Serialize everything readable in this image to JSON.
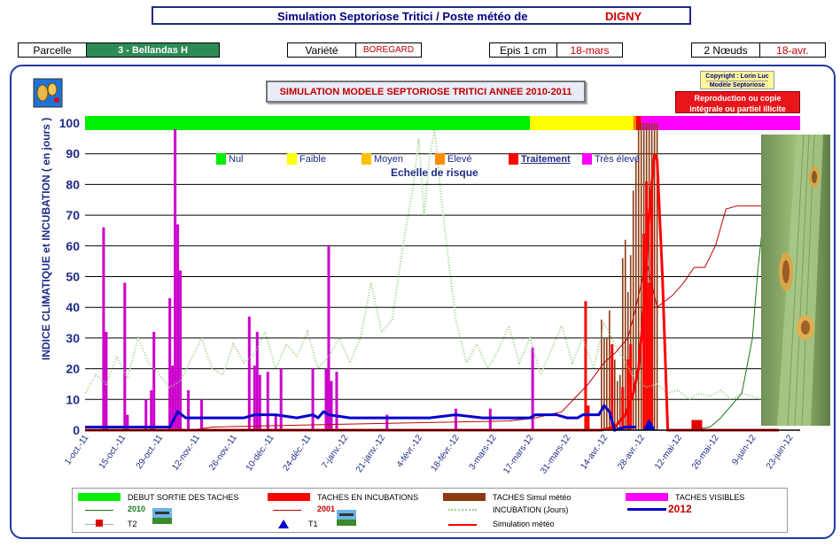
{
  "header": {
    "title_prefix": "Simulation Septoriose Tritici / Poste météo de",
    "station": "DIGNY"
  },
  "info_bar": {
    "parcelle_label": "Parcelle",
    "parcelle_value": "3 - Bellandas H",
    "variete_label": "Variété",
    "variete_value": "BOREGARD",
    "epis_label": "Epis 1 cm",
    "epis_value": "18-mars",
    "noeuds_label": "2 Nœuds",
    "noeuds_value": "18-avr."
  },
  "chart_title": "SIMULATION MODELE SEPTORIOSE TRITICI ANNEE 2010-2011",
  "copyright": {
    "line1": "Copyright : Lorin Luc",
    "line2": "Modèle Septoriose"
  },
  "reproduction": {
    "line1": "Reproduction ou copie",
    "line2": "intégrale ou partiel illicite"
  },
  "colors": {
    "nul": "#00ee00",
    "faible": "#ffff00",
    "moyen": "#ffc000",
    "eleve": "#ff8c00",
    "traitement": "#ff0000",
    "tres_eleve": "#ff00ff",
    "axis_text": "#1f2b86"
  },
  "chart_data": {
    "type": "line",
    "ylabel": "INDICE CLIMATIQUE  et  INCUBATION  ( en jours )",
    "ylim": [
      0,
      100
    ],
    "yticks": [
      0,
      10,
      20,
      30,
      40,
      50,
      60,
      70,
      80,
      90,
      100
    ],
    "xticks": [
      "1-oct.-11",
      "15-oct.-11",
      "29-oct.-11",
      "12-nov.-11",
      "26-nov.-11",
      "10-déc.-11",
      "24-déc.-11",
      "7-janv.-12",
      "21-janv.-12",
      "4-févr.-12",
      "18-févr.-12",
      "3-mars-12",
      "17-mars-12",
      "31-mars-12",
      "14-avr.-12",
      "28-avr.-12",
      "12-mai-12",
      "26-mai-12",
      "9-juin-12",
      "23-juin-12"
    ],
    "risk_scale": {
      "title": "Echelle de risque",
      "items": [
        {
          "label": "Nul",
          "color": "#00ee00"
        },
        {
          "label": "Faible",
          "color": "#ffff00"
        },
        {
          "label": "Moyen",
          "color": "#ffc000"
        },
        {
          "label": "Elevé",
          "color": "#ff8c00"
        },
        {
          "label": "Traitement",
          "color": "#ff0000"
        },
        {
          "label": "Très élevé",
          "color": "#ff00ff"
        }
      ],
      "bands": [
        {
          "from_day": 0,
          "to_day": 168,
          "color": "#00ee00"
        },
        {
          "from_day": 168,
          "to_day": 207,
          "color": "#ffff00"
        },
        {
          "from_day": 207,
          "to_day": 208,
          "color": "#ff8c00"
        },
        {
          "from_day": 208,
          "to_day": 210,
          "color": "#ff0000"
        },
        {
          "from_day": 210,
          "to_day": 270,
          "color": "#ff00ff"
        }
      ]
    },
    "series": [
      {
        "name": "TACHES VISIBLES",
        "kind": "bars",
        "color": "#cc00cc",
        "points": [
          [
            7,
            66
          ],
          [
            8,
            32
          ],
          [
            15,
            48
          ],
          [
            16,
            5
          ],
          [
            23,
            10
          ],
          [
            25,
            13
          ],
          [
            26,
            32
          ],
          [
            32,
            43
          ],
          [
            33,
            21
          ],
          [
            34,
            98
          ],
          [
            35,
            67
          ],
          [
            36,
            52
          ],
          [
            39,
            13
          ],
          [
            44,
            10
          ],
          [
            62,
            37
          ],
          [
            64,
            21
          ],
          [
            65,
            32
          ],
          [
            66,
            18
          ],
          [
            69,
            19
          ],
          [
            72,
            5
          ],
          [
            74,
            20
          ],
          [
            86,
            20
          ],
          [
            91,
            20
          ],
          [
            92,
            60
          ],
          [
            93,
            16
          ],
          [
            95,
            19
          ],
          [
            114,
            5
          ],
          [
            140,
            7
          ],
          [
            153,
            7
          ],
          [
            169,
            27
          ]
        ]
      },
      {
        "name": "TACHES Simul météo",
        "kind": "bars",
        "color": "#8b3a0f",
        "points": [
          [
            195,
            36
          ],
          [
            196,
            30
          ],
          [
            197,
            30
          ],
          [
            198,
            39
          ],
          [
            199,
            18
          ],
          [
            200,
            23
          ],
          [
            201,
            16
          ],
          [
            202,
            18
          ],
          [
            203,
            56
          ],
          [
            204,
            62
          ],
          [
            205,
            45
          ],
          [
            206,
            57
          ],
          [
            207,
            78
          ],
          [
            208,
            88
          ],
          [
            209,
            100
          ],
          [
            210,
            100
          ],
          [
            211,
            100
          ],
          [
            212,
            100
          ],
          [
            213,
            100
          ],
          [
            214,
            100
          ],
          [
            215,
            100
          ],
          [
            216,
            100
          ]
        ]
      },
      {
        "name": "TACHES EN INCUBATIONS",
        "kind": "bars",
        "color": "#ff0000",
        "points": [
          [
            189,
            42
          ],
          [
            190,
            8
          ],
          [
            199,
            28
          ],
          [
            203,
            14
          ],
          [
            205,
            23
          ],
          [
            206,
            28
          ],
          [
            211,
            64
          ],
          [
            212,
            81
          ],
          [
            213,
            48
          ],
          [
            214,
            81
          ]
        ]
      },
      {
        "name": "INCUBATION (Jours)",
        "kind": "dotted",
        "color": "#9ad08a",
        "points": [
          [
            0,
            12
          ],
          [
            4,
            18
          ],
          [
            8,
            15
          ],
          [
            12,
            24
          ],
          [
            16,
            17
          ],
          [
            20,
            30
          ],
          [
            24,
            22
          ],
          [
            28,
            18
          ],
          [
            32,
            14
          ],
          [
            36,
            16
          ],
          [
            40,
            23
          ],
          [
            44,
            30
          ],
          [
            48,
            20
          ],
          [
            52,
            18
          ],
          [
            56,
            28
          ],
          [
            60,
            22
          ],
          [
            64,
            25
          ],
          [
            68,
            32
          ],
          [
            72,
            20
          ],
          [
            76,
            28
          ],
          [
            80,
            24
          ],
          [
            84,
            32
          ],
          [
            88,
            20
          ],
          [
            92,
            24
          ],
          [
            96,
            30
          ],
          [
            100,
            22
          ],
          [
            104,
            30
          ],
          [
            108,
            48
          ],
          [
            112,
            32
          ],
          [
            116,
            36
          ],
          [
            120,
            60
          ],
          [
            124,
            80
          ],
          [
            126,
            95
          ],
          [
            128,
            70
          ],
          [
            130,
            88
          ],
          [
            132,
            98
          ],
          [
            134,
            80
          ],
          [
            136,
            64
          ],
          [
            138,
            50
          ],
          [
            140,
            36
          ],
          [
            144,
            22
          ],
          [
            148,
            28
          ],
          [
            152,
            20
          ],
          [
            156,
            26
          ],
          [
            160,
            34
          ],
          [
            164,
            22
          ],
          [
            168,
            30
          ],
          [
            172,
            18
          ],
          [
            176,
            26
          ],
          [
            180,
            34
          ],
          [
            184,
            22
          ],
          [
            188,
            30
          ],
          [
            192,
            20
          ],
          [
            196,
            35
          ],
          [
            200,
            28
          ],
          [
            204,
            22
          ],
          [
            208,
            16
          ],
          [
            212,
            14
          ],
          [
            216,
            15
          ],
          [
            220,
            12
          ],
          [
            224,
            13
          ],
          [
            228,
            10
          ],
          [
            232,
            12
          ],
          [
            236,
            11
          ],
          [
            240,
            13
          ],
          [
            244,
            10
          ],
          [
            248,
            12
          ],
          [
            252,
            11
          ],
          [
            256,
            10
          ]
        ]
      },
      {
        "name": "2001",
        "kind": "line",
        "color": "#c00000",
        "points": [
          [
            0,
            0
          ],
          [
            40,
            0
          ],
          [
            48,
            1
          ],
          [
            100,
            2
          ],
          [
            160,
            3
          ],
          [
            170,
            4
          ],
          [
            180,
            6
          ],
          [
            190,
            15
          ],
          [
            196,
            22
          ],
          [
            200,
            25
          ],
          [
            205,
            30
          ],
          [
            208,
            40
          ],
          [
            212,
            55
          ],
          [
            216,
            40
          ],
          [
            222,
            44
          ],
          [
            226,
            48
          ],
          [
            230,
            53
          ],
          [
            234,
            53
          ],
          [
            238,
            60
          ],
          [
            242,
            72
          ],
          [
            246,
            73
          ],
          [
            250,
            73
          ],
          [
            256,
            73
          ],
          [
            262,
            73
          ]
        ]
      },
      {
        "name": "2010",
        "kind": "line",
        "color": "#1a7a1a",
        "points": [
          [
            0,
            0
          ],
          [
            200,
            0
          ],
          [
            220,
            0
          ],
          [
            228,
            0
          ],
          [
            236,
            1
          ],
          [
            240,
            4
          ],
          [
            244,
            8
          ],
          [
            248,
            12
          ],
          [
            252,
            30
          ],
          [
            254,
            52
          ],
          [
            256,
            68
          ],
          [
            258,
            71
          ]
        ]
      },
      {
        "name": "Simulation météo",
        "kind": "line",
        "color": "#ff0000",
        "points": [
          [
            0,
            0
          ],
          [
            195,
            0
          ],
          [
            200,
            1
          ],
          [
            204,
            5
          ],
          [
            207,
            12
          ],
          [
            209,
            20
          ],
          [
            211,
            40
          ],
          [
            213,
            70
          ],
          [
            215,
            90
          ],
          [
            216,
            88
          ],
          [
            218,
            50
          ],
          [
            220,
            0
          ],
          [
            262,
            0
          ]
        ]
      },
      {
        "name": "2012",
        "kind": "line",
        "color": "#0000cc",
        "points": [
          [
            0,
            1
          ],
          [
            32,
            1
          ],
          [
            35,
            6
          ],
          [
            38,
            4
          ],
          [
            60,
            4
          ],
          [
            64,
            5
          ],
          [
            68,
            5
          ],
          [
            72,
            5
          ],
          [
            80,
            4
          ],
          [
            86,
            5
          ],
          [
            88,
            4
          ],
          [
            90,
            6
          ],
          [
            92,
            5
          ],
          [
            100,
            4
          ],
          [
            110,
            4
          ],
          [
            120,
            4
          ],
          [
            130,
            4
          ],
          [
            140,
            5
          ],
          [
            150,
            4
          ],
          [
            160,
            4
          ],
          [
            168,
            4
          ],
          [
            170,
            5
          ],
          [
            178,
            5
          ],
          [
            182,
            4
          ],
          [
            186,
            4
          ],
          [
            188,
            5
          ],
          [
            194,
            5
          ],
          [
            196,
            8
          ],
          [
            198,
            6
          ],
          [
            200,
            0
          ],
          [
            204,
            1
          ],
          [
            208,
            1
          ]
        ]
      }
    ],
    "markers": [
      {
        "name": "T1",
        "day": 213,
        "value": 1,
        "shape": "triangle",
        "color": "#0000cc"
      },
      {
        "name": "T2",
        "day": 231,
        "value": 1,
        "shape": "square",
        "color": "#e00000"
      }
    ]
  },
  "legend": {
    "debut": "DEBUT SORTIE DES TACHES",
    "incub": "TACHES EN INCUBATIONS",
    "simul": "TACHES Simul météo",
    "visibles": "TACHES VISIBLES",
    "y2010": "2010",
    "y2001": "2001",
    "incubation": "INCUBATION (Jours)",
    "y2012": "2012",
    "t2": "T2",
    "t1": "T1",
    "simulation": "Simulation météo"
  }
}
